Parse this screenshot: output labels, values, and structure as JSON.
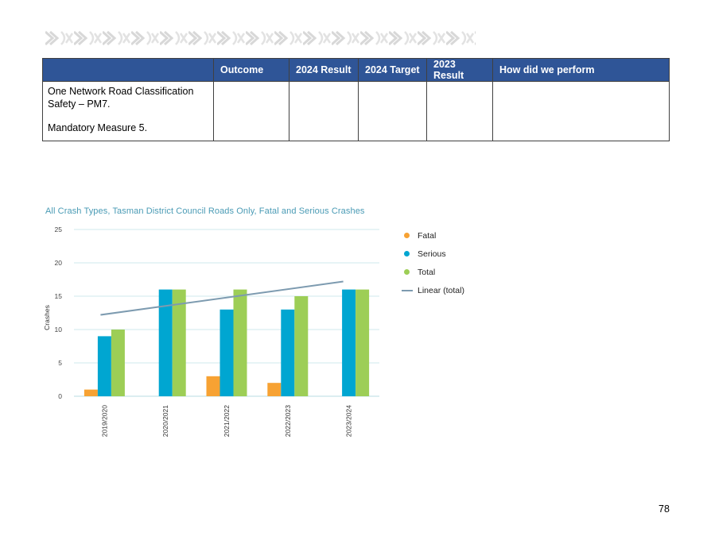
{
  "table": {
    "headers": [
      "",
      "Outcome",
      "2024 Result",
      "2024 Target",
      "2023 Result",
      "How did we perform"
    ],
    "row": {
      "measure_line1": "One Network Road Classification Safety – PM7.",
      "measure_line2": "Mandatory Measure 5.",
      "outcome": "",
      "result_2024": "",
      "target_2024": "",
      "result_2023": "",
      "performance": ""
    }
  },
  "chart_data": {
    "type": "bar",
    "title": "All Crash Types, Tasman District Council Roads Only, Fatal and Serious Crashes",
    "ylabel": "Crashes",
    "xlabel": "",
    "ylim": [
      0,
      25
    ],
    "yticks": [
      0,
      5,
      10,
      15,
      20,
      25
    ],
    "grid": true,
    "legend_position": "right",
    "categories": [
      "2019/2020",
      "2020/2021",
      "2021/2022",
      "2022/2023",
      "2023/2024"
    ],
    "series": [
      {
        "name": "Fatal",
        "color": "#f7a233",
        "values": [
          1,
          0,
          3,
          2,
          0
        ]
      },
      {
        "name": "Serious",
        "color": "#00a6d1",
        "values": [
          9,
          16,
          13,
          13,
          16
        ]
      },
      {
        "name": "Total",
        "color": "#9dce56",
        "values": [
          10,
          16,
          16,
          15,
          16
        ]
      }
    ],
    "trendline": {
      "name": "Linear (total)",
      "color": "#7d9bb0",
      "start": 12.2,
      "end": 17.2
    }
  },
  "page_number": "78"
}
